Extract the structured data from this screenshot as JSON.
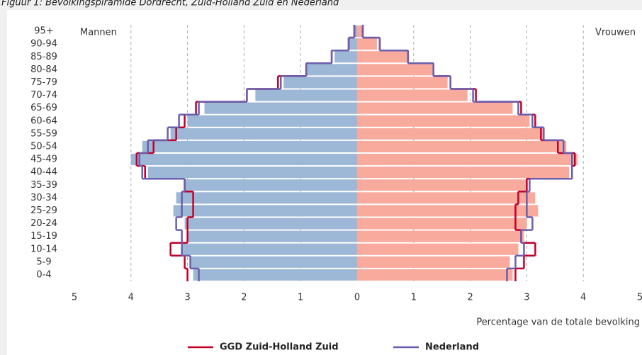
{
  "chart_data": {
    "type": "pyramid",
    "title": "Figuur 1: Bevolkingspiramide Dordrecht, Zuid-Holland Zuid en Nederland",
    "x_label": "Percentage van de totale bevolking",
    "categories": [
      "0-4",
      "5-9",
      "10-14",
      "15-19",
      "20-24",
      "25-29",
      "30-34",
      "35-39",
      "40-44",
      "45-49",
      "50-54",
      "55-59",
      "60-64",
      "65-69",
      "70-74",
      "75-79",
      "80-84",
      "85-89",
      "90-94",
      "95+"
    ],
    "groups": [
      {
        "name": "Mannen",
        "side": "left",
        "color": "#9db8d6",
        "values": [
          2.9,
          2.95,
          3.1,
          3.0,
          3.05,
          3.25,
          3.2,
          3.05,
          3.7,
          4.0,
          3.8,
          3.3,
          3.0,
          2.7,
          1.8,
          1.3,
          0.9,
          0.4,
          0.15,
          0.05
        ]
      },
      {
        "name": "Vrouwen",
        "side": "right",
        "color": "#f8aa9d",
        "values": [
          2.75,
          2.7,
          2.85,
          2.95,
          3.0,
          3.2,
          3.15,
          3.0,
          3.75,
          3.9,
          3.7,
          3.3,
          3.05,
          2.75,
          1.95,
          1.6,
          1.35,
          0.9,
          0.35,
          0.1
        ]
      }
    ],
    "series": [
      {
        "name": "GGD Zuid-Holland Zuid",
        "color": "#c0002a",
        "left": [
          3.0,
          3.05,
          3.3,
          3.0,
          3.0,
          2.9,
          2.9,
          3.05,
          3.75,
          3.9,
          3.6,
          3.2,
          3.05,
          2.85,
          1.95,
          1.4,
          0.9,
          0.45,
          0.15,
          0.05
        ],
        "right": [
          2.8,
          2.95,
          3.15,
          2.9,
          2.8,
          2.8,
          2.85,
          3.0,
          3.8,
          3.85,
          3.55,
          3.25,
          3.15,
          2.9,
          2.1,
          1.65,
          1.35,
          0.9,
          0.4,
          0.1
        ]
      },
      {
        "name": "Nederland",
        "color": "#6a5fae",
        "left": [
          2.8,
          2.95,
          3.1,
          3.1,
          3.2,
          3.1,
          3.1,
          3.05,
          3.8,
          3.85,
          3.7,
          3.35,
          3.15,
          2.8,
          1.95,
          1.35,
          0.9,
          0.45,
          0.15,
          0.05
        ],
        "right": [
          2.65,
          2.8,
          2.95,
          2.9,
          3.1,
          3.0,
          3.0,
          3.05,
          3.8,
          3.8,
          3.65,
          3.3,
          3.1,
          2.85,
          2.05,
          1.65,
          1.35,
          0.9,
          0.4,
          0.1
        ]
      }
    ],
    "xlim": [
      -5,
      5
    ],
    "xticks": [
      {
        "value": -5,
        "label": "5"
      },
      {
        "value": -4,
        "label": "4"
      },
      {
        "value": -3,
        "label": "3"
      },
      {
        "value": -2,
        "label": "2"
      },
      {
        "value": -1,
        "label": "1"
      },
      0,
      1,
      2,
      3,
      4,
      5
    ],
    "grid": true
  }
}
